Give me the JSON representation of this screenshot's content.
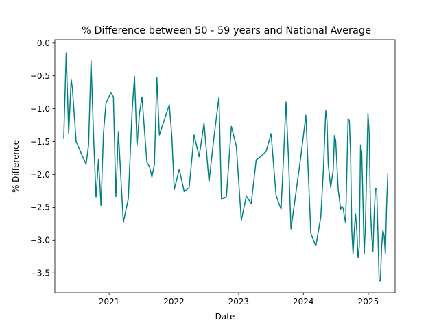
{
  "chart_data": {
    "type": "line",
    "title": "% Difference between 50 - 59 years and National Average",
    "xlabel": "Date",
    "ylabel": "% Difference",
    "x_axis_type": "date",
    "xlim": [
      "2020-03-01",
      "2025-06-01"
    ],
    "ylim": [
      -3.8,
      0.05
    ],
    "x_ticks": [
      {
        "date": "2021-01-01",
        "label": "2021"
      },
      {
        "date": "2022-01-01",
        "label": "2022"
      },
      {
        "date": "2023-01-01",
        "label": "2023"
      },
      {
        "date": "2024-01-01",
        "label": "2024"
      },
      {
        "date": "2025-01-01",
        "label": "2025"
      }
    ],
    "y_ticks": [
      {
        "value": 0.0,
        "label": "0.0"
      },
      {
        "value": -0.5,
        "label": "−0.5"
      },
      {
        "value": -1.0,
        "label": "−1.0"
      },
      {
        "value": -1.5,
        "label": "−1.5"
      },
      {
        "value": -2.0,
        "label": "−2.0"
      },
      {
        "value": -2.5,
        "label": "−2.5"
      },
      {
        "value": -3.0,
        "label": "−3.0"
      },
      {
        "value": -3.5,
        "label": "−3.5"
      }
    ],
    "grid": false,
    "series": [
      {
        "color": "#008080",
        "points": [
          [
            "2020-04-20",
            -1.45
          ],
          [
            "2020-05-04",
            -0.15
          ],
          [
            "2020-05-18",
            -1.38
          ],
          [
            "2020-06-01",
            -0.55
          ],
          [
            "2020-06-08",
            -0.7
          ],
          [
            "2020-06-29",
            -1.5
          ],
          [
            "2020-08-24",
            -1.85
          ],
          [
            "2020-09-07",
            -1.55
          ],
          [
            "2020-09-21",
            -0.27
          ],
          [
            "2020-10-05",
            -1.4
          ],
          [
            "2020-10-19",
            -2.35
          ],
          [
            "2020-11-02",
            -1.77
          ],
          [
            "2020-11-16",
            -2.47
          ],
          [
            "2020-11-30",
            -1.37
          ],
          [
            "2020-12-14",
            -0.92
          ],
          [
            "2021-01-11",
            -0.75
          ],
          [
            "2021-01-25",
            -0.82
          ],
          [
            "2021-02-08",
            -2.34
          ],
          [
            "2021-02-22",
            -1.35
          ],
          [
            "2021-03-22",
            -2.73
          ],
          [
            "2021-04-19",
            -2.37
          ],
          [
            "2021-05-10",
            -1.05
          ],
          [
            "2021-05-24",
            -0.51
          ],
          [
            "2021-06-07",
            -1.56
          ],
          [
            "2021-06-21",
            -1.07
          ],
          [
            "2021-07-05",
            -0.82
          ],
          [
            "2021-08-02",
            -1.82
          ],
          [
            "2021-08-16",
            -1.88
          ],
          [
            "2021-08-30",
            -2.04
          ],
          [
            "2021-09-13",
            -1.85
          ],
          [
            "2021-09-27",
            -0.53
          ],
          [
            "2021-10-11",
            -1.4
          ],
          [
            "2021-12-06",
            -0.94
          ],
          [
            "2021-12-20",
            -1.4
          ],
          [
            "2022-01-03",
            -2.23
          ],
          [
            "2022-01-31",
            -1.92
          ],
          [
            "2022-02-28",
            -2.26
          ],
          [
            "2022-03-28",
            -2.2
          ],
          [
            "2022-04-25",
            -1.4
          ],
          [
            "2022-05-23",
            -1.73
          ],
          [
            "2022-06-20",
            -1.22
          ],
          [
            "2022-07-18",
            -2.11
          ],
          [
            "2022-08-15",
            -1.43
          ],
          [
            "2022-09-12",
            -0.82
          ],
          [
            "2022-09-26",
            -2.38
          ],
          [
            "2022-10-24",
            -2.34
          ],
          [
            "2022-11-21",
            -1.27
          ],
          [
            "2022-12-19",
            -1.57
          ],
          [
            "2023-01-16",
            -2.7
          ],
          [
            "2023-02-13",
            -2.33
          ],
          [
            "2023-03-13",
            -2.44
          ],
          [
            "2023-04-10",
            -1.78
          ],
          [
            "2023-05-08",
            -1.72
          ],
          [
            "2023-06-05",
            -1.65
          ],
          [
            "2023-07-03",
            -1.38
          ],
          [
            "2023-07-31",
            -2.32
          ],
          [
            "2023-08-28",
            -2.53
          ],
          [
            "2023-09-11",
            -1.75
          ],
          [
            "2023-09-25",
            -0.9
          ],
          [
            "2023-10-09",
            -1.75
          ],
          [
            "2023-10-23",
            -2.83
          ],
          [
            "2023-12-18",
            -1.72
          ],
          [
            "2024-01-15",
            -1.1
          ],
          [
            "2024-02-12",
            -2.9
          ],
          [
            "2024-03-11",
            -3.09
          ],
          [
            "2024-04-08",
            -2.65
          ],
          [
            "2024-04-22",
            -1.97
          ],
          [
            "2024-05-06",
            -1.03
          ],
          [
            "2024-05-13",
            -1.18
          ],
          [
            "2024-05-20",
            -1.85
          ],
          [
            "2024-06-03",
            -2.2
          ],
          [
            "2024-06-17",
            -1.93
          ],
          [
            "2024-06-24",
            -1.41
          ],
          [
            "2024-07-01",
            -1.48
          ],
          [
            "2024-07-15",
            -2.22
          ],
          [
            "2024-07-29",
            -2.53
          ],
          [
            "2024-08-05",
            -2.49
          ],
          [
            "2024-08-12",
            -2.51
          ],
          [
            "2024-08-19",
            -2.64
          ],
          [
            "2024-08-26",
            -2.74
          ],
          [
            "2024-09-02",
            -1.95
          ],
          [
            "2024-09-09",
            -1.15
          ],
          [
            "2024-09-16",
            -1.18
          ],
          [
            "2024-09-23",
            -1.69
          ],
          [
            "2024-09-30",
            -2.87
          ],
          [
            "2024-10-07",
            -3.21
          ],
          [
            "2024-10-14",
            -2.85
          ],
          [
            "2024-10-21",
            -2.6
          ],
          [
            "2024-10-28",
            -2.85
          ],
          [
            "2024-11-04",
            -3.27
          ],
          [
            "2024-11-11",
            -3.1
          ],
          [
            "2024-11-18",
            -1.55
          ],
          [
            "2024-11-25",
            -1.67
          ],
          [
            "2024-12-02",
            -2.43
          ],
          [
            "2024-12-09",
            -3.21
          ],
          [
            "2024-12-16",
            -2.72
          ],
          [
            "2024-12-23",
            -1.9
          ],
          [
            "2024-12-30",
            -1.07
          ],
          [
            "2025-01-06",
            -1.38
          ],
          [
            "2025-01-13",
            -2.52
          ],
          [
            "2025-01-20",
            -2.93
          ],
          [
            "2025-01-27",
            -3.17
          ],
          [
            "2025-02-03",
            -2.6
          ],
          [
            "2025-02-10",
            -2.22
          ],
          [
            "2025-02-17",
            -2.22
          ],
          [
            "2025-02-24",
            -2.88
          ],
          [
            "2025-03-03",
            -3.61
          ],
          [
            "2025-03-10",
            -3.62
          ],
          [
            "2025-03-17",
            -3.1
          ],
          [
            "2025-03-24",
            -2.85
          ],
          [
            "2025-03-31",
            -2.93
          ],
          [
            "2025-04-07",
            -3.21
          ],
          [
            "2025-04-14",
            -2.48
          ],
          [
            "2025-04-21",
            -1.99
          ]
        ]
      }
    ]
  }
}
